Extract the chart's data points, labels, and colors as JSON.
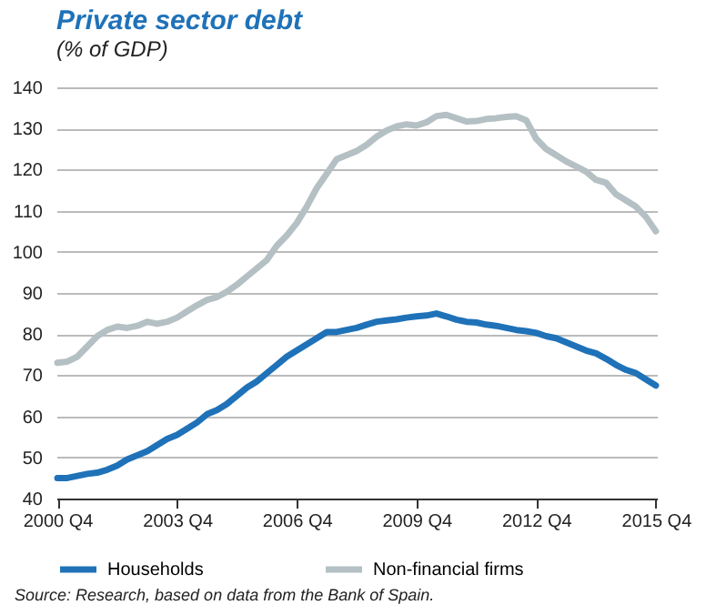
{
  "chart_data": {
    "type": "line",
    "title": "Private sector debt",
    "subtitle": "(% of GDP)",
    "categories": [
      "2000 Q4",
      null,
      null,
      null,
      null,
      null,
      null,
      null,
      null,
      null,
      null,
      null,
      "2003 Q4",
      null,
      null,
      null,
      null,
      null,
      null,
      null,
      null,
      null,
      null,
      null,
      "2006 Q4",
      null,
      null,
      null,
      null,
      null,
      null,
      null,
      null,
      null,
      null,
      null,
      "2009 Q4",
      null,
      null,
      null,
      null,
      null,
      null,
      null,
      null,
      null,
      null,
      null,
      "2012 Q4",
      null,
      null,
      null,
      null,
      null,
      null,
      null,
      null,
      null,
      null,
      null,
      "2015 Q4"
    ],
    "ylim": [
      40,
      140
    ],
    "yticks": [
      40,
      50,
      60,
      70,
      80,
      90,
      100,
      110,
      120,
      130,
      140
    ],
    "grid": "y",
    "legend": "bottom",
    "line_style": "solid",
    "marker": "none",
    "annotations": [
      "Source: Research, based on data from the Bank of Spain."
    ],
    "series": [
      {
        "name": "Households",
        "color": "#1f72b8",
        "values": [
          45,
          45,
          45.5,
          46,
          46.3,
          47,
          48,
          49.5,
          50.5,
          51.5,
          53,
          54.5,
          55.5,
          57,
          58.5,
          60.5,
          61.5,
          63,
          65,
          67,
          68.5,
          70.5,
          72.5,
          74.5,
          76,
          77.5,
          79,
          80.5,
          80.5,
          81,
          81.5,
          82.3,
          83,
          83.3,
          83.6,
          84,
          84.3,
          84.5,
          85,
          84.3,
          83.5,
          83,
          82.8,
          82.3,
          82,
          81.5,
          81,
          80.7,
          80.3,
          79.5,
          79,
          78,
          77,
          76,
          75.3,
          74,
          72.5,
          71.3,
          70.5,
          69,
          67.5
        ]
      },
      {
        "name": "Non-financial firms",
        "color": "#b4c0c4",
        "values": [
          73,
          73.3,
          74.5,
          77,
          79.5,
          81,
          81.8,
          81.5,
          82,
          83,
          82.5,
          83,
          84,
          85.5,
          87,
          88.3,
          89,
          90.3,
          92,
          94,
          96,
          98,
          101.5,
          104,
          107,
          111,
          115.5,
          119,
          122.5,
          123.5,
          124.5,
          126,
          128,
          129.5,
          130.5,
          131,
          130.7,
          131.5,
          133,
          133.3,
          132.5,
          131.7,
          131.8,
          132.3,
          132.5,
          132.8,
          133,
          132,
          127.5,
          125,
          123.5,
          122,
          120.8,
          119.5,
          117.5,
          116.8,
          114,
          112.5,
          111,
          108.5,
          105
        ]
      }
    ]
  }
}
